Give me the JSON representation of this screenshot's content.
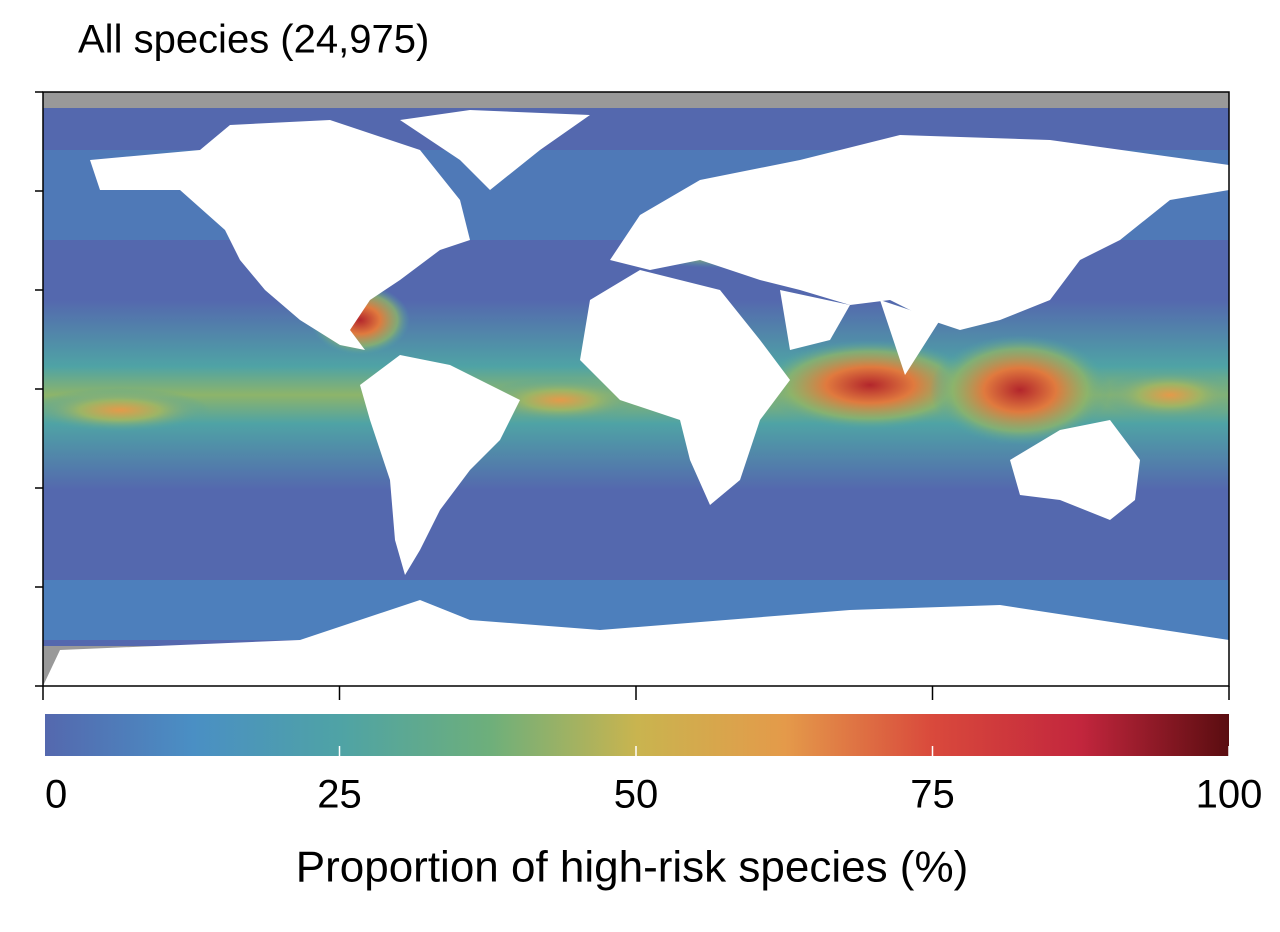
{
  "map": {
    "title": "All species (24,975)"
  },
  "colorbar": {
    "label": "Proportion of high-risk species (%)",
    "lim": [
      0,
      100
    ],
    "ticks": [
      0,
      25,
      50,
      75,
      100
    ],
    "colors": [
      "#5468ae",
      "#4a8fc4",
      "#4fa3a5",
      "#6daf7b",
      "#c9b44f",
      "#e49a4a",
      "#d9493c",
      "#c2263d",
      "#5a0d10"
    ]
  }
}
